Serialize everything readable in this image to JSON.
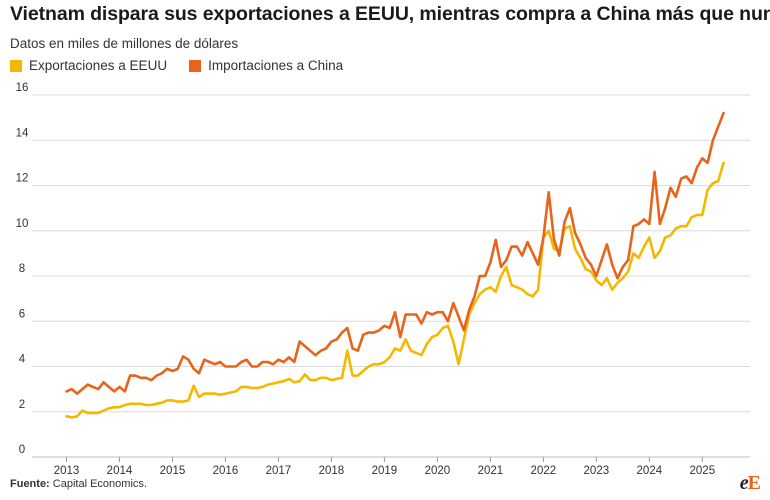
{
  "header": {
    "title": "Vietnam dispara sus exportaciones a EEUU, mientras compra a China más que nunca",
    "subtitle": "Datos en miles de millones de dólares"
  },
  "legend": [
    {
      "label": "Exportaciones a EEUU",
      "color": "#f5b800"
    },
    {
      "label": "Importaciones a China",
      "color": "#e8641b"
    }
  ],
  "footer": {
    "source_label": "Fuente:",
    "source_text": "Capital Economics."
  },
  "logo": {
    "text_1": "e",
    "text_2": "E"
  },
  "chart_data": {
    "type": "line",
    "x_unit": "year",
    "xlim": [
      2012.5,
      2025.9
    ],
    "ylim": [
      0,
      16
    ],
    "y_ticks": [
      0,
      2,
      4,
      6,
      8,
      10,
      12,
      14,
      16
    ],
    "x_ticks": [
      "2013",
      "2014",
      "2015",
      "2016",
      "2017",
      "2018",
      "2019",
      "2020",
      "2021",
      "2022",
      "2023",
      "2024",
      "2025"
    ],
    "grid": "horizontal",
    "legend_position": "top-left",
    "series": [
      {
        "name": "Exportaciones a EEUU",
        "color": "#f5b800",
        "points": [
          [
            2013.0,
            1.8
          ],
          [
            2013.1,
            1.75
          ],
          [
            2013.2,
            1.8
          ],
          [
            2013.3,
            2.05
          ],
          [
            2013.4,
            1.95
          ],
          [
            2013.5,
            1.95
          ],
          [
            2013.6,
            1.95
          ],
          [
            2013.7,
            2.05
          ],
          [
            2013.8,
            2.15
          ],
          [
            2013.9,
            2.2
          ],
          [
            2014.0,
            2.2
          ],
          [
            2014.1,
            2.3
          ],
          [
            2014.2,
            2.35
          ],
          [
            2014.3,
            2.35
          ],
          [
            2014.4,
            2.35
          ],
          [
            2014.5,
            2.3
          ],
          [
            2014.6,
            2.3
          ],
          [
            2014.7,
            2.35
          ],
          [
            2014.8,
            2.4
          ],
          [
            2014.9,
            2.5
          ],
          [
            2015.0,
            2.5
          ],
          [
            2015.1,
            2.45
          ],
          [
            2015.2,
            2.45
          ],
          [
            2015.3,
            2.5
          ],
          [
            2015.4,
            3.15
          ],
          [
            2015.5,
            2.65
          ],
          [
            2015.6,
            2.8
          ],
          [
            2015.7,
            2.8
          ],
          [
            2015.8,
            2.8
          ],
          [
            2015.9,
            2.75
          ],
          [
            2016.0,
            2.8
          ],
          [
            2016.1,
            2.85
          ],
          [
            2016.2,
            2.9
          ],
          [
            2016.3,
            3.1
          ],
          [
            2016.4,
            3.1
          ],
          [
            2016.5,
            3.05
          ],
          [
            2016.6,
            3.05
          ],
          [
            2016.7,
            3.1
          ],
          [
            2016.8,
            3.2
          ],
          [
            2016.9,
            3.25
          ],
          [
            2017.0,
            3.3
          ],
          [
            2017.1,
            3.35
          ],
          [
            2017.2,
            3.45
          ],
          [
            2017.3,
            3.3
          ],
          [
            2017.4,
            3.35
          ],
          [
            2017.5,
            3.65
          ],
          [
            2017.6,
            3.4
          ],
          [
            2017.7,
            3.4
          ],
          [
            2017.8,
            3.5
          ],
          [
            2017.9,
            3.5
          ],
          [
            2018.0,
            3.4
          ],
          [
            2018.1,
            3.45
          ],
          [
            2018.2,
            3.5
          ],
          [
            2018.3,
            4.7
          ],
          [
            2018.4,
            3.6
          ],
          [
            2018.5,
            3.6
          ],
          [
            2018.6,
            3.8
          ],
          [
            2018.7,
            4.0
          ],
          [
            2018.8,
            4.1
          ],
          [
            2018.9,
            4.1
          ],
          [
            2019.0,
            4.2
          ],
          [
            2019.1,
            4.4
          ],
          [
            2019.2,
            4.8
          ],
          [
            2019.3,
            4.7
          ],
          [
            2019.4,
            5.2
          ],
          [
            2019.5,
            4.7
          ],
          [
            2019.6,
            4.6
          ],
          [
            2019.7,
            4.5
          ],
          [
            2019.8,
            5.0
          ],
          [
            2019.9,
            5.3
          ],
          [
            2020.0,
            5.4
          ],
          [
            2020.1,
            5.7
          ],
          [
            2020.2,
            5.8
          ],
          [
            2020.3,
            5.1
          ],
          [
            2020.4,
            4.1
          ],
          [
            2020.5,
            5.2
          ],
          [
            2020.6,
            6.3
          ],
          [
            2020.7,
            6.8
          ],
          [
            2020.8,
            7.2
          ],
          [
            2020.9,
            7.4
          ],
          [
            2021.0,
            7.5
          ],
          [
            2021.1,
            7.3
          ],
          [
            2021.2,
            8.0
          ],
          [
            2021.3,
            8.4
          ],
          [
            2021.4,
            7.6
          ],
          [
            2021.5,
            7.5
          ],
          [
            2021.6,
            7.4
          ],
          [
            2021.7,
            7.2
          ],
          [
            2021.8,
            7.1
          ],
          [
            2021.9,
            7.4
          ],
          [
            2022.0,
            9.7
          ],
          [
            2022.1,
            10.0
          ],
          [
            2022.2,
            9.2
          ],
          [
            2022.3,
            9.1
          ],
          [
            2022.4,
            10.1
          ],
          [
            2022.5,
            10.2
          ],
          [
            2022.6,
            9.2
          ],
          [
            2022.7,
            8.8
          ],
          [
            2022.8,
            8.3
          ],
          [
            2022.9,
            8.2
          ],
          [
            2023.0,
            7.8
          ],
          [
            2023.1,
            7.6
          ],
          [
            2023.2,
            7.9
          ],
          [
            2023.3,
            7.4
          ],
          [
            2023.4,
            7.7
          ],
          [
            2023.5,
            7.9
          ],
          [
            2023.6,
            8.2
          ],
          [
            2023.7,
            9.0
          ],
          [
            2023.8,
            8.8
          ],
          [
            2023.9,
            9.3
          ],
          [
            2024.0,
            9.7
          ],
          [
            2024.1,
            8.8
          ],
          [
            2024.2,
            9.1
          ],
          [
            2024.3,
            9.7
          ],
          [
            2024.4,
            9.8
          ],
          [
            2024.5,
            10.1
          ],
          [
            2024.6,
            10.2
          ],
          [
            2024.7,
            10.2
          ],
          [
            2024.8,
            10.6
          ],
          [
            2024.9,
            10.7
          ],
          [
            2025.0,
            10.7
          ],
          [
            2025.1,
            11.8
          ],
          [
            2025.2,
            12.1
          ],
          [
            2025.3,
            12.2
          ],
          [
            2025.4,
            13.0
          ]
        ]
      },
      {
        "name": "Importaciones a China",
        "color": "#e8641b",
        "points": [
          [
            2013.0,
            2.9
          ],
          [
            2013.1,
            3.0
          ],
          [
            2013.2,
            2.8
          ],
          [
            2013.3,
            3.0
          ],
          [
            2013.4,
            3.2
          ],
          [
            2013.5,
            3.1
          ],
          [
            2013.6,
            3.0
          ],
          [
            2013.7,
            3.3
          ],
          [
            2013.8,
            3.1
          ],
          [
            2013.9,
            2.9
          ],
          [
            2014.0,
            3.1
          ],
          [
            2014.1,
            2.9
          ],
          [
            2014.2,
            3.6
          ],
          [
            2014.3,
            3.6
          ],
          [
            2014.4,
            3.5
          ],
          [
            2014.5,
            3.5
          ],
          [
            2014.6,
            3.4
          ],
          [
            2014.7,
            3.6
          ],
          [
            2014.8,
            3.7
          ],
          [
            2014.9,
            3.9
          ],
          [
            2015.0,
            3.8
          ],
          [
            2015.1,
            3.9
          ],
          [
            2015.2,
            4.45
          ],
          [
            2015.3,
            4.3
          ],
          [
            2015.4,
            3.9
          ],
          [
            2015.5,
            3.7
          ],
          [
            2015.6,
            4.3
          ],
          [
            2015.7,
            4.2
          ],
          [
            2015.8,
            4.1
          ],
          [
            2015.9,
            4.2
          ],
          [
            2016.0,
            4.0
          ],
          [
            2016.1,
            4.0
          ],
          [
            2016.2,
            4.0
          ],
          [
            2016.3,
            4.2
          ],
          [
            2016.4,
            4.3
          ],
          [
            2016.5,
            4.0
          ],
          [
            2016.6,
            4.0
          ],
          [
            2016.7,
            4.2
          ],
          [
            2016.8,
            4.2
          ],
          [
            2016.9,
            4.1
          ],
          [
            2017.0,
            4.3
          ],
          [
            2017.1,
            4.2
          ],
          [
            2017.2,
            4.4
          ],
          [
            2017.3,
            4.2
          ],
          [
            2017.4,
            5.1
          ],
          [
            2017.5,
            4.9
          ],
          [
            2017.6,
            4.7
          ],
          [
            2017.7,
            4.5
          ],
          [
            2017.8,
            4.7
          ],
          [
            2017.9,
            4.8
          ],
          [
            2018.0,
            5.1
          ],
          [
            2018.1,
            5.2
          ],
          [
            2018.2,
            5.5
          ],
          [
            2018.3,
            5.7
          ],
          [
            2018.4,
            4.8
          ],
          [
            2018.5,
            4.7
          ],
          [
            2018.6,
            5.4
          ],
          [
            2018.7,
            5.5
          ],
          [
            2018.8,
            5.5
          ],
          [
            2018.9,
            5.6
          ],
          [
            2019.0,
            5.8
          ],
          [
            2019.1,
            5.7
          ],
          [
            2019.2,
            6.4
          ],
          [
            2019.3,
            5.3
          ],
          [
            2019.4,
            6.3
          ],
          [
            2019.5,
            6.3
          ],
          [
            2019.6,
            6.3
          ],
          [
            2019.7,
            5.9
          ],
          [
            2019.8,
            6.4
          ],
          [
            2019.9,
            6.3
          ],
          [
            2020.0,
            6.4
          ],
          [
            2020.1,
            6.4
          ],
          [
            2020.2,
            6.0
          ],
          [
            2020.3,
            6.8
          ],
          [
            2020.4,
            6.2
          ],
          [
            2020.5,
            5.6
          ],
          [
            2020.6,
            6.5
          ],
          [
            2020.7,
            7.1
          ],
          [
            2020.8,
            8.0
          ],
          [
            2020.9,
            8.0
          ],
          [
            2021.0,
            8.6
          ],
          [
            2021.1,
            9.6
          ],
          [
            2021.2,
            8.4
          ],
          [
            2021.3,
            8.7
          ],
          [
            2021.4,
            9.3
          ],
          [
            2021.5,
            9.3
          ],
          [
            2021.6,
            8.9
          ],
          [
            2021.7,
            9.5
          ],
          [
            2021.8,
            9.0
          ],
          [
            2021.9,
            8.5
          ],
          [
            2022.0,
            9.7
          ],
          [
            2022.1,
            11.7
          ],
          [
            2022.2,
            9.6
          ],
          [
            2022.3,
            8.9
          ],
          [
            2022.4,
            10.4
          ],
          [
            2022.5,
            11.0
          ],
          [
            2022.6,
            9.9
          ],
          [
            2022.7,
            9.4
          ],
          [
            2022.8,
            8.8
          ],
          [
            2022.9,
            8.5
          ],
          [
            2023.0,
            8.0
          ],
          [
            2023.1,
            8.7
          ],
          [
            2023.2,
            9.4
          ],
          [
            2023.3,
            8.5
          ],
          [
            2023.4,
            7.9
          ],
          [
            2023.5,
            8.4
          ],
          [
            2023.6,
            8.7
          ],
          [
            2023.7,
            10.2
          ],
          [
            2023.8,
            10.3
          ],
          [
            2023.9,
            10.5
          ],
          [
            2024.0,
            10.3
          ],
          [
            2024.1,
            12.6
          ],
          [
            2024.2,
            10.3
          ],
          [
            2024.3,
            11.0
          ],
          [
            2024.4,
            11.9
          ],
          [
            2024.5,
            11.5
          ],
          [
            2024.6,
            12.3
          ],
          [
            2024.7,
            12.4
          ],
          [
            2024.8,
            12.1
          ],
          [
            2024.9,
            12.8
          ],
          [
            2025.0,
            13.2
          ],
          [
            2025.1,
            13.0
          ],
          [
            2025.2,
            14.0
          ],
          [
            2025.3,
            14.6
          ],
          [
            2025.4,
            15.2
          ]
        ]
      }
    ]
  }
}
